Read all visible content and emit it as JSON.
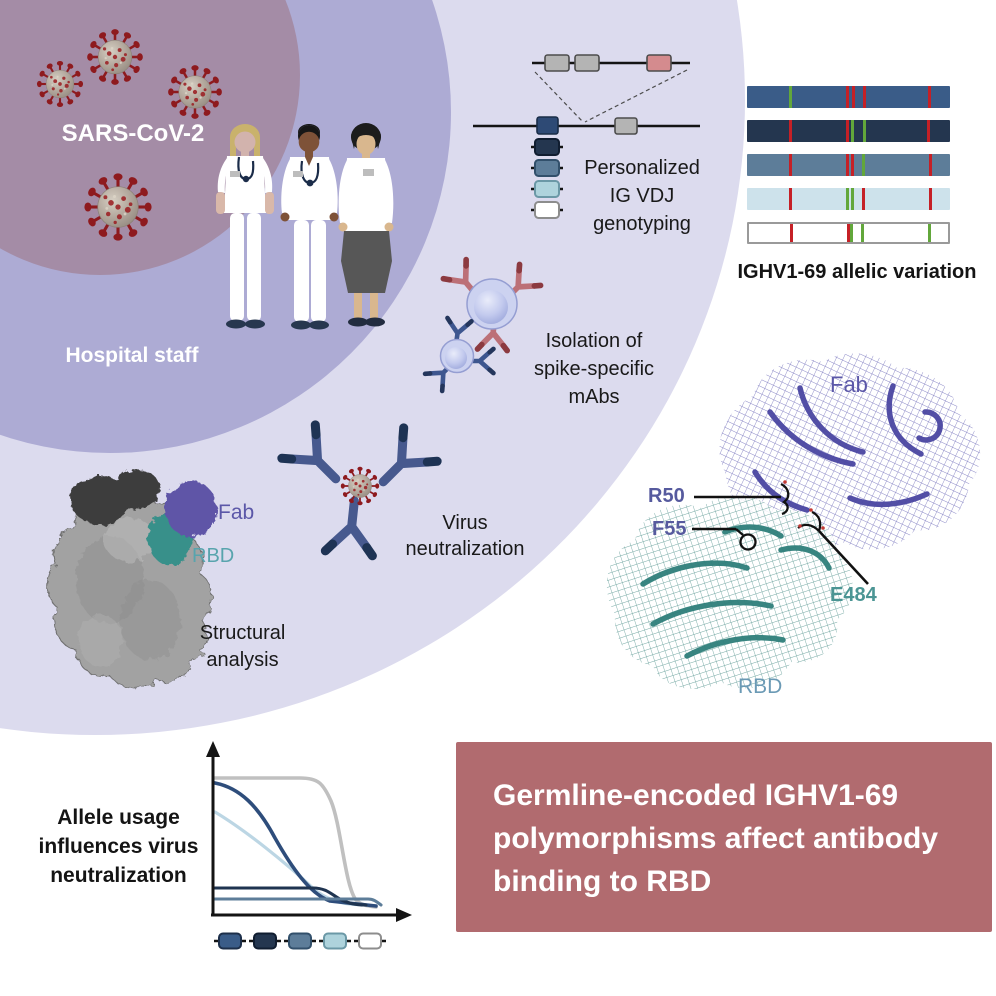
{
  "meta": {
    "figure_type": "graphical abstract"
  },
  "palette": {
    "bg": "#ffffff",
    "circle_outer": "#dcdbee",
    "circle_middle": "#adabd4",
    "circle_inner": "#a48ca6",
    "conclusion_bg": "#b16b6f",
    "virus_red": "#8e1a1e",
    "antibody_navy": "#47598e",
    "antibody_navy_tip": "#1e3354",
    "antibody_red": "#bc7077",
    "antibody_red_tip": "#8c3a40",
    "fab_purple": "#5b57a8",
    "rbd_teal": "#3f908b",
    "tick_red": "#c52026",
    "tick_green": "#62a73b"
  },
  "labels": {
    "sars": "SARS-CoV-2",
    "hospital_staff": "Hospital staff",
    "genotyping_lines": [
      "Personalized",
      "IG VDJ",
      "genotyping"
    ],
    "allelic_variation": "IGHV1-69 allelic variation",
    "isolation_lines": [
      "Isolation of",
      "spike-specific",
      "mAbs"
    ],
    "neutralization_lines": [
      "Virus",
      "neutralization"
    ],
    "structural_lines": [
      "Structural",
      "analysis"
    ],
    "fab_small": "Fab",
    "rbd_small": "RBD",
    "fab_large": "Fab",
    "rbd_large": "RBD",
    "r50": "R50",
    "f55": "F55",
    "e484": "E484",
    "allele_usage_lines": [
      "Allele usage",
      "influences virus",
      "neutralization"
    ],
    "conclusion_lines": [
      "Germline-encoded IGHV1-69",
      "polymorphisms affect antibody",
      "binding to RBD"
    ]
  },
  "alleles": [
    {
      "name": "allele-1-medium-blue",
      "fill": "#3a5c88",
      "border": "#1d2f4a"
    },
    {
      "name": "allele-2-dark-navy",
      "fill": "#24364f",
      "border": "#101d30"
    },
    {
      "name": "allele-3-slate-blue",
      "fill": "#5d7d99",
      "border": "#32506b"
    },
    {
      "name": "allele-4-light-blue",
      "fill": "#aed3dc",
      "border": "#6b98a6"
    },
    {
      "name": "allele-5-white",
      "fill": "#ffffff",
      "border": "#8d8d8d"
    }
  ],
  "ighv_bars": [
    {
      "fill": "#3a5c88",
      "border": null,
      "ticks": [
        {
          "pos": 0.205,
          "color": "green"
        },
        {
          "pos": 0.489,
          "color": "red"
        },
        {
          "pos": 0.516,
          "color": "red"
        },
        {
          "pos": 0.57,
          "color": "red"
        },
        {
          "pos": 0.893,
          "color": "red"
        }
      ]
    },
    {
      "fill": "#24364f",
      "border": null,
      "ticks": [
        {
          "pos": 0.205,
          "color": "red"
        },
        {
          "pos": 0.489,
          "color": "red"
        },
        {
          "pos": 0.513,
          "color": "green"
        },
        {
          "pos": 0.57,
          "color": "green"
        },
        {
          "pos": 0.885,
          "color": "red"
        }
      ]
    },
    {
      "fill": "#5d7d99",
      "border": null,
      "ticks": [
        {
          "pos": 0.205,
          "color": "red"
        },
        {
          "pos": 0.487,
          "color": "red"
        },
        {
          "pos": 0.513,
          "color": "red"
        },
        {
          "pos": 0.565,
          "color": "green"
        },
        {
          "pos": 0.895,
          "color": "red"
        }
      ]
    },
    {
      "fill": "#cde2eb",
      "border": null,
      "ticks": [
        {
          "pos": 0.205,
          "color": "red"
        },
        {
          "pos": 0.49,
          "color": "green"
        },
        {
          "pos": 0.513,
          "color": "green"
        },
        {
          "pos": 0.568,
          "color": "red"
        },
        {
          "pos": 0.895,
          "color": "red"
        }
      ]
    },
    {
      "fill": "#ffffff",
      "border": "#9a9a9a",
      "ticks": [
        {
          "pos": 0.205,
          "color": "red"
        },
        {
          "pos": 0.49,
          "color": "red"
        },
        {
          "pos": 0.508,
          "color": "green"
        },
        {
          "pos": 0.562,
          "color": "green"
        },
        {
          "pos": 0.9,
          "color": "green"
        }
      ]
    }
  ],
  "chart_data": {
    "type": "line",
    "title": "Allele usage influences virus neutralization (schematic dose-response)",
    "xlabel": "",
    "ylabel": "",
    "x_ticks": [],
    "y_ticks": [],
    "grid": false,
    "legend_position": "below x-axis as allele gene icons",
    "series": [
      {
        "name": "gray reference",
        "color": "#c0c0c0",
        "shape": "high plateau then steep late sigmoid drop to baseline"
      },
      {
        "name": "allele-1-medium-blue",
        "color": "#2e4d7b",
        "shape": "high start, gradual sigmoid decline to baseline"
      },
      {
        "name": "allele-4-light-blue",
        "color": "#bcd6e4",
        "shape": "medium start, near-linear decline to baseline"
      },
      {
        "name": "allele-2-dark-navy",
        "color": "#1f3450",
        "shape": "low horizontal line, small drop near right end"
      },
      {
        "name": "allele-3-slate-blue",
        "color": "#5d7d99",
        "shape": "very low horizontal line across plot"
      }
    ]
  }
}
